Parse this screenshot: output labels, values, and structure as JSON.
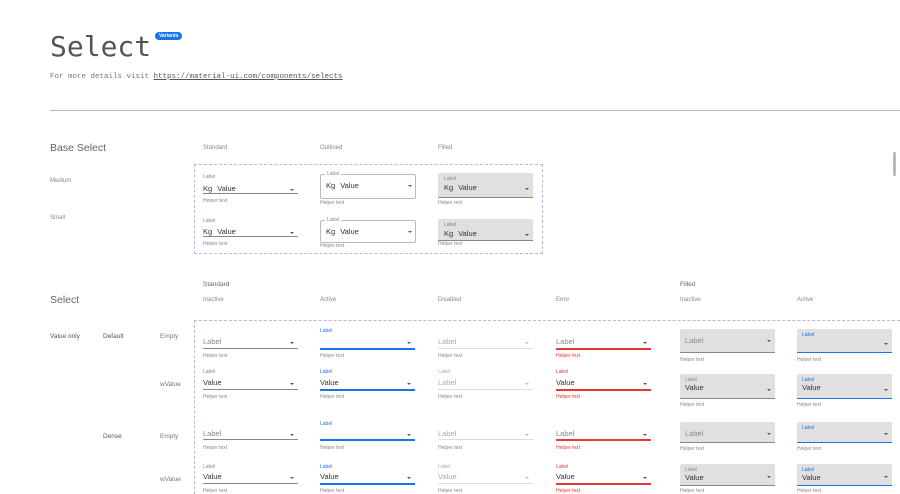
{
  "header": {
    "title": "Select",
    "badge": "Variants",
    "subtitle_prefix": "For more details visit ",
    "link": "https://material-ui.com/components/selects"
  },
  "base_select": {
    "title": "Base Select",
    "columns": [
      "Standard",
      "Outlined",
      "Filled"
    ],
    "rows": [
      {
        "label": "Medium",
        "size": "medium"
      },
      {
        "label": "Small",
        "size": "small"
      }
    ],
    "field": {
      "label": "Label",
      "adornment": "Kg",
      "value": "Value",
      "helper": "Helper text"
    }
  },
  "select": {
    "title": "Select",
    "groups": [
      "Standard",
      "Filled"
    ],
    "columns": [
      "Inactive",
      "Active",
      "Disabled",
      "Error",
      "Inactive",
      "Active"
    ],
    "row_group": "Value only",
    "densities": [
      "Default",
      "Dense"
    ],
    "row_types": [
      "Empty",
      "wValue",
      "Empty",
      "wValue"
    ],
    "rows": [
      [
        {
          "variant": "standard",
          "state": "inactive",
          "label": "Label",
          "value": "",
          "helper": "Helper text"
        },
        {
          "variant": "standard",
          "state": "active",
          "label": "Label",
          "value": "",
          "helper": "Helper text"
        },
        {
          "variant": "standard",
          "state": "disabled",
          "label": "Label",
          "value": "",
          "helper": "Helper text"
        },
        {
          "variant": "standard",
          "state": "error",
          "label": "Label",
          "value": "",
          "helper": "Helper text"
        },
        {
          "variant": "filled",
          "state": "inactive",
          "label": "Label",
          "value": "",
          "helper": "Helper text"
        },
        {
          "variant": "filled",
          "state": "active",
          "label": "Label",
          "value": "",
          "helper": "Helper text"
        }
      ],
      [
        {
          "variant": "standard",
          "state": "inactive",
          "label": "Label",
          "value": "Value",
          "helper": "Helper text"
        },
        {
          "variant": "standard",
          "state": "active",
          "label": "Label",
          "value": "Value",
          "helper": "Helper text"
        },
        {
          "variant": "standard",
          "state": "disabled",
          "label": "Label",
          "value": "Label",
          "helper": "Helper text"
        },
        {
          "variant": "standard",
          "state": "error",
          "label": "Label",
          "value": "Value",
          "helper": "Helper text"
        },
        {
          "variant": "filled",
          "state": "inactive",
          "label": "Label",
          "value": "Value",
          "helper": "Helper text"
        },
        {
          "variant": "filled",
          "state": "active",
          "label": "Label",
          "value": "Value",
          "helper": "Helper text"
        }
      ],
      [
        {
          "variant": "standard",
          "state": "inactive",
          "label": "Label",
          "value": "",
          "helper": "Helper text"
        },
        {
          "variant": "standard",
          "state": "active",
          "label": "Label",
          "value": "",
          "helper": "Helper text"
        },
        {
          "variant": "standard",
          "state": "disabled",
          "label": "Label",
          "value": "",
          "helper": "Helper text"
        },
        {
          "variant": "standard",
          "state": "error",
          "label": "Label",
          "value": "",
          "helper": "Helper text"
        },
        {
          "variant": "filled",
          "state": "inactive",
          "label": "Label",
          "value": "",
          "helper": "Helper text"
        },
        {
          "variant": "filled",
          "state": "active",
          "label": "Label",
          "value": "",
          "helper": "Helper text"
        }
      ],
      [
        {
          "variant": "standard",
          "state": "inactive",
          "label": "Label",
          "value": "Value",
          "helper": "Helper text"
        },
        {
          "variant": "standard",
          "state": "active",
          "label": "Label",
          "value": "Value",
          "helper": "Helper text"
        },
        {
          "variant": "standard",
          "state": "disabled",
          "label": "Label",
          "value": "Value",
          "helper": "Helper text"
        },
        {
          "variant": "standard",
          "state": "error",
          "label": "Label",
          "value": "Value",
          "helper": "Helper text"
        },
        {
          "variant": "filled",
          "state": "inactive",
          "label": "Label",
          "value": "Value",
          "helper": "Helper text"
        },
        {
          "variant": "filled",
          "state": "active",
          "label": "Label",
          "value": "Value",
          "helper": "Helper text"
        }
      ]
    ]
  },
  "colors": {
    "accent": "#1a73e8",
    "error": "#e53935",
    "filled_bg": "#e0e0e0",
    "dashed_frame": "#b9b6e6"
  }
}
